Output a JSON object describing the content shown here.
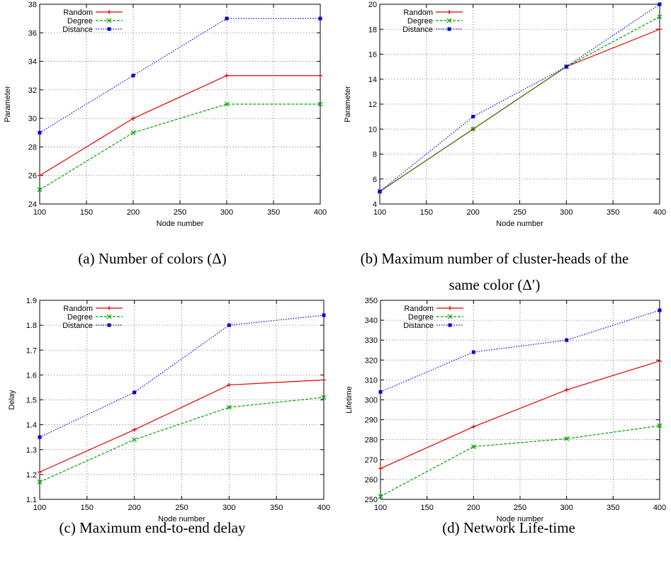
{
  "chart_data": [
    {
      "type": "line",
      "x": [
        100,
        200,
        300,
        400
      ],
      "xlim": [
        100,
        400
      ],
      "ylim": [
        24,
        38
      ],
      "xticks": [
        100,
        150,
        200,
        250,
        300,
        350,
        400
      ],
      "yticks": [
        24,
        26,
        28,
        30,
        32,
        34,
        36,
        38
      ],
      "xlabel": "Node number",
      "ylabel": "Parameter",
      "grid": true,
      "legend_position": "top-left",
      "series": [
        {
          "name": "Random",
          "values": [
            26,
            30,
            33,
            33
          ],
          "color": "#e00000",
          "style": "solid",
          "marker": "plus"
        },
        {
          "name": "Degree",
          "values": [
            25,
            29,
            31,
            31
          ],
          "color": "#00a000",
          "style": "dashed",
          "marker": "cross"
        },
        {
          "name": "Distance",
          "values": [
            29,
            33,
            37,
            37
          ],
          "color": "#0000e0",
          "style": "dotted",
          "marker": "square"
        }
      ],
      "caption": "(a) Number of colors (Δ)"
    },
    {
      "type": "line",
      "x": [
        100,
        200,
        300,
        400
      ],
      "xlim": [
        100,
        400
      ],
      "ylim": [
        4,
        20
      ],
      "xticks": [
        100,
        150,
        200,
        250,
        300,
        350,
        400
      ],
      "yticks": [
        4,
        6,
        8,
        10,
        12,
        14,
        16,
        18,
        20
      ],
      "xlabel": "Node number",
      "ylabel": "Parameter",
      "grid": true,
      "legend_position": "top-left",
      "series": [
        {
          "name": "Random",
          "values": [
            5,
            10,
            15,
            18
          ],
          "color": "#e00000",
          "style": "solid",
          "marker": "plus"
        },
        {
          "name": "Degree",
          "values": [
            5,
            10,
            15,
            19
          ],
          "color": "#00a000",
          "style": "dashed",
          "marker": "cross"
        },
        {
          "name": "Distance",
          "values": [
            5,
            11,
            15,
            20
          ],
          "color": "#0000e0",
          "style": "dotted",
          "marker": "square"
        }
      ],
      "caption_lines": [
        "(b) Maximum number of cluster-heads of the",
        "same color (Δ′)"
      ]
    },
    {
      "type": "line",
      "x": [
        100,
        200,
        300,
        400
      ],
      "xlim": [
        100,
        400
      ],
      "ylim": [
        1.1,
        1.9
      ],
      "xticks": [
        100,
        150,
        200,
        250,
        300,
        350,
        400
      ],
      "yticks": [
        1.1,
        1.2,
        1.3,
        1.4,
        1.5,
        1.6,
        1.7,
        1.8,
        1.9
      ],
      "xlabel": "Node number",
      "ylabel": "Delay",
      "grid": true,
      "legend_position": "top-left",
      "series": [
        {
          "name": "Random",
          "values": [
            1.21,
            1.38,
            1.56,
            1.58
          ],
          "color": "#e00000",
          "style": "solid",
          "marker": "plus"
        },
        {
          "name": "Degree",
          "values": [
            1.17,
            1.34,
            1.47,
            1.51
          ],
          "color": "#00a000",
          "style": "dashed",
          "marker": "cross"
        },
        {
          "name": "Distance",
          "values": [
            1.35,
            1.53,
            1.8,
            1.84
          ],
          "color": "#0000e0",
          "style": "dotted",
          "marker": "square"
        }
      ],
      "caption": "(c) Maximum end-to-end delay"
    },
    {
      "type": "line",
      "x": [
        100,
        200,
        300,
        400
      ],
      "xlim": [
        100,
        400
      ],
      "ylim": [
        250,
        350
      ],
      "xticks": [
        100,
        150,
        200,
        250,
        300,
        350,
        400
      ],
      "yticks": [
        250,
        260,
        270,
        280,
        290,
        300,
        310,
        320,
        330,
        340,
        350
      ],
      "xlabel": "Node number",
      "ylabel": "Lifetime",
      "grid": true,
      "legend_position": "top-left",
      "series": [
        {
          "name": "Random",
          "values": [
            265.5,
            286.5,
            305,
            319.5
          ],
          "color": "#e00000",
          "style": "solid",
          "marker": "plus"
        },
        {
          "name": "Degree",
          "values": [
            251.5,
            276.5,
            280.5,
            287
          ],
          "color": "#00a000",
          "style": "dashed",
          "marker": "cross"
        },
        {
          "name": "Distance",
          "values": [
            304,
            324,
            330,
            345
          ],
          "color": "#0000e0",
          "style": "dotted",
          "marker": "square"
        }
      ],
      "caption": "(d) Network Life-time"
    }
  ]
}
